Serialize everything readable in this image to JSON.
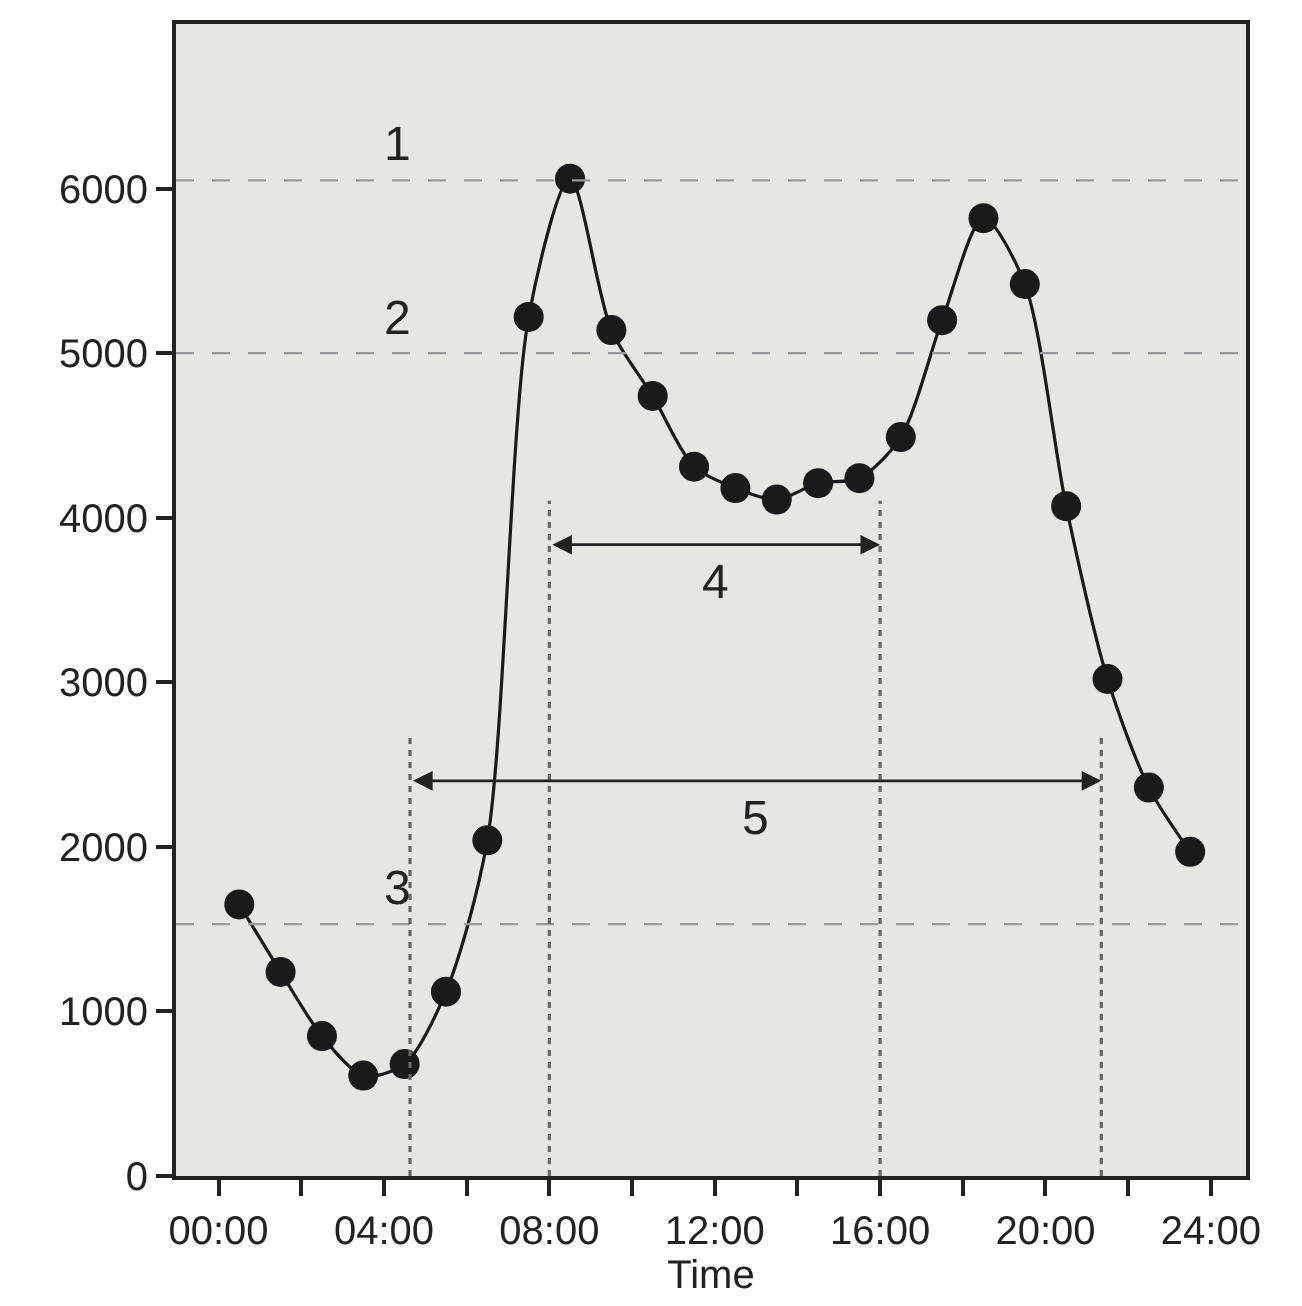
{
  "chart_data": {
    "type": "line",
    "xlabel": "Time",
    "x": [
      0.5,
      1.5,
      2.5,
      3.5,
      4.5,
      5.5,
      6.5,
      7.5,
      8.5,
      9.5,
      10.5,
      11.5,
      12.5,
      13.5,
      14.5,
      15.5,
      16.5,
      17.5,
      18.5,
      19.5,
      20.5,
      21.5,
      22.5,
      23.5
    ],
    "series": [
      {
        "color": "#1a1a1a",
        "values": [
          1650,
          1240,
          850,
          610,
          680,
          1120,
          2040,
          5220,
          6060,
          5140,
          4740,
          4310,
          4180,
          4110,
          4210,
          4240,
          4490,
          5200,
          5820,
          5420,
          4070,
          3020,
          2360,
          1970
        ]
      }
    ],
    "marker": "circle",
    "line_style": "solid",
    "xlim": [
      -1.03,
      24.85
    ],
    "xticks": [
      {
        "value": 0,
        "label": "00:00"
      },
      {
        "value": 2,
        "label": null
      },
      {
        "value": 4,
        "label": "04:00"
      },
      {
        "value": 6,
        "label": null
      },
      {
        "value": 8,
        "label": "08:00"
      },
      {
        "value": 10,
        "label": null
      },
      {
        "value": 12,
        "label": "12:00"
      },
      {
        "value": 14,
        "label": null
      },
      {
        "value": 16,
        "label": "16:00"
      },
      {
        "value": 18,
        "label": null
      },
      {
        "value": 20,
        "label": "20:00"
      },
      {
        "value": 22,
        "label": null
      },
      {
        "value": 24,
        "label": "24:00"
      }
    ],
    "ylim": [
      0,
      7000
    ],
    "yticks": [
      0,
      1000,
      2000,
      3000,
      4000,
      5000,
      6000
    ],
    "ref_lines": [
      {
        "axis": "y",
        "value": 6050,
        "color": "#999999",
        "line_style": "dashed"
      },
      {
        "axis": "y",
        "value": 5000,
        "color": "#999999",
        "line_style": "dashed"
      },
      {
        "axis": "y",
        "value": 1530,
        "color": "#999999",
        "line_style": "dashed"
      },
      {
        "axis": "x",
        "value": 8,
        "color": "#666666",
        "line_style": "dotted"
      },
      {
        "axis": "x",
        "value": 16,
        "color": "#666666",
        "line_style": "dotted"
      },
      {
        "axis": "x",
        "value": 4.63,
        "color": "#666666",
        "line_style": "dotted"
      },
      {
        "axis": "x",
        "value": 21.35,
        "color": "#666666",
        "line_style": "dotted"
      }
    ],
    "annotations": [
      "1",
      "2",
      "3",
      "4",
      "5"
    ]
  }
}
